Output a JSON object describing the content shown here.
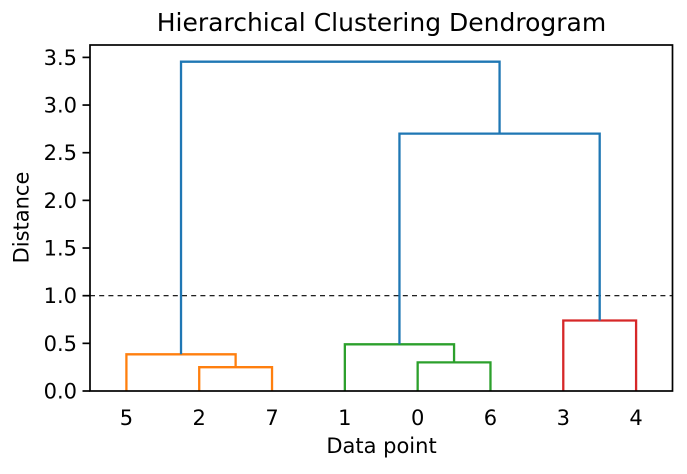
{
  "chart_data": {
    "type": "dendrogram",
    "title": "Hierarchical Clustering Dendrogram",
    "xlabel": "Data point",
    "ylabel": "Distance",
    "leaves": [
      "5",
      "2",
      "7",
      "1",
      "0",
      "6",
      "3",
      "4"
    ],
    "yticks": [
      "0.0",
      "0.5",
      "1.0",
      "1.5",
      "2.0",
      "2.5",
      "3.0",
      "3.5"
    ],
    "ylim": [
      0,
      3.63
    ],
    "xlim": [
      0,
      80
    ],
    "grid": false,
    "legend": null,
    "threshold_line": {
      "y": 1.0,
      "style": "dashed",
      "color": "#000000"
    },
    "colors": {
      "above_threshold": "#1f77b4",
      "cluster_orange": "#ff7f0e",
      "cluster_green": "#2ca02c",
      "cluster_red": "#d62728",
      "axis": "#000000",
      "background": "#ffffff"
    },
    "merges": [
      {
        "id": "m0",
        "a": "2",
        "b": "7",
        "height": 0.25,
        "color": "#ff7f0e"
      },
      {
        "id": "m1",
        "a": "5",
        "b": "m0",
        "height": 0.385,
        "color": "#ff7f0e"
      },
      {
        "id": "m2",
        "a": "0",
        "b": "6",
        "height": 0.3,
        "color": "#2ca02c"
      },
      {
        "id": "m3",
        "a": "1",
        "b": "m2",
        "height": 0.49,
        "color": "#2ca02c"
      },
      {
        "id": "m4",
        "a": "3",
        "b": "4",
        "height": 0.74,
        "color": "#d62728"
      },
      {
        "id": "m5",
        "a": "m3",
        "b": "m4",
        "height": 2.7,
        "color": "#1f77b4"
      },
      {
        "id": "m6",
        "a": "m1",
        "b": "m5",
        "height": 3.455,
        "color": "#1f77b4"
      }
    ]
  }
}
